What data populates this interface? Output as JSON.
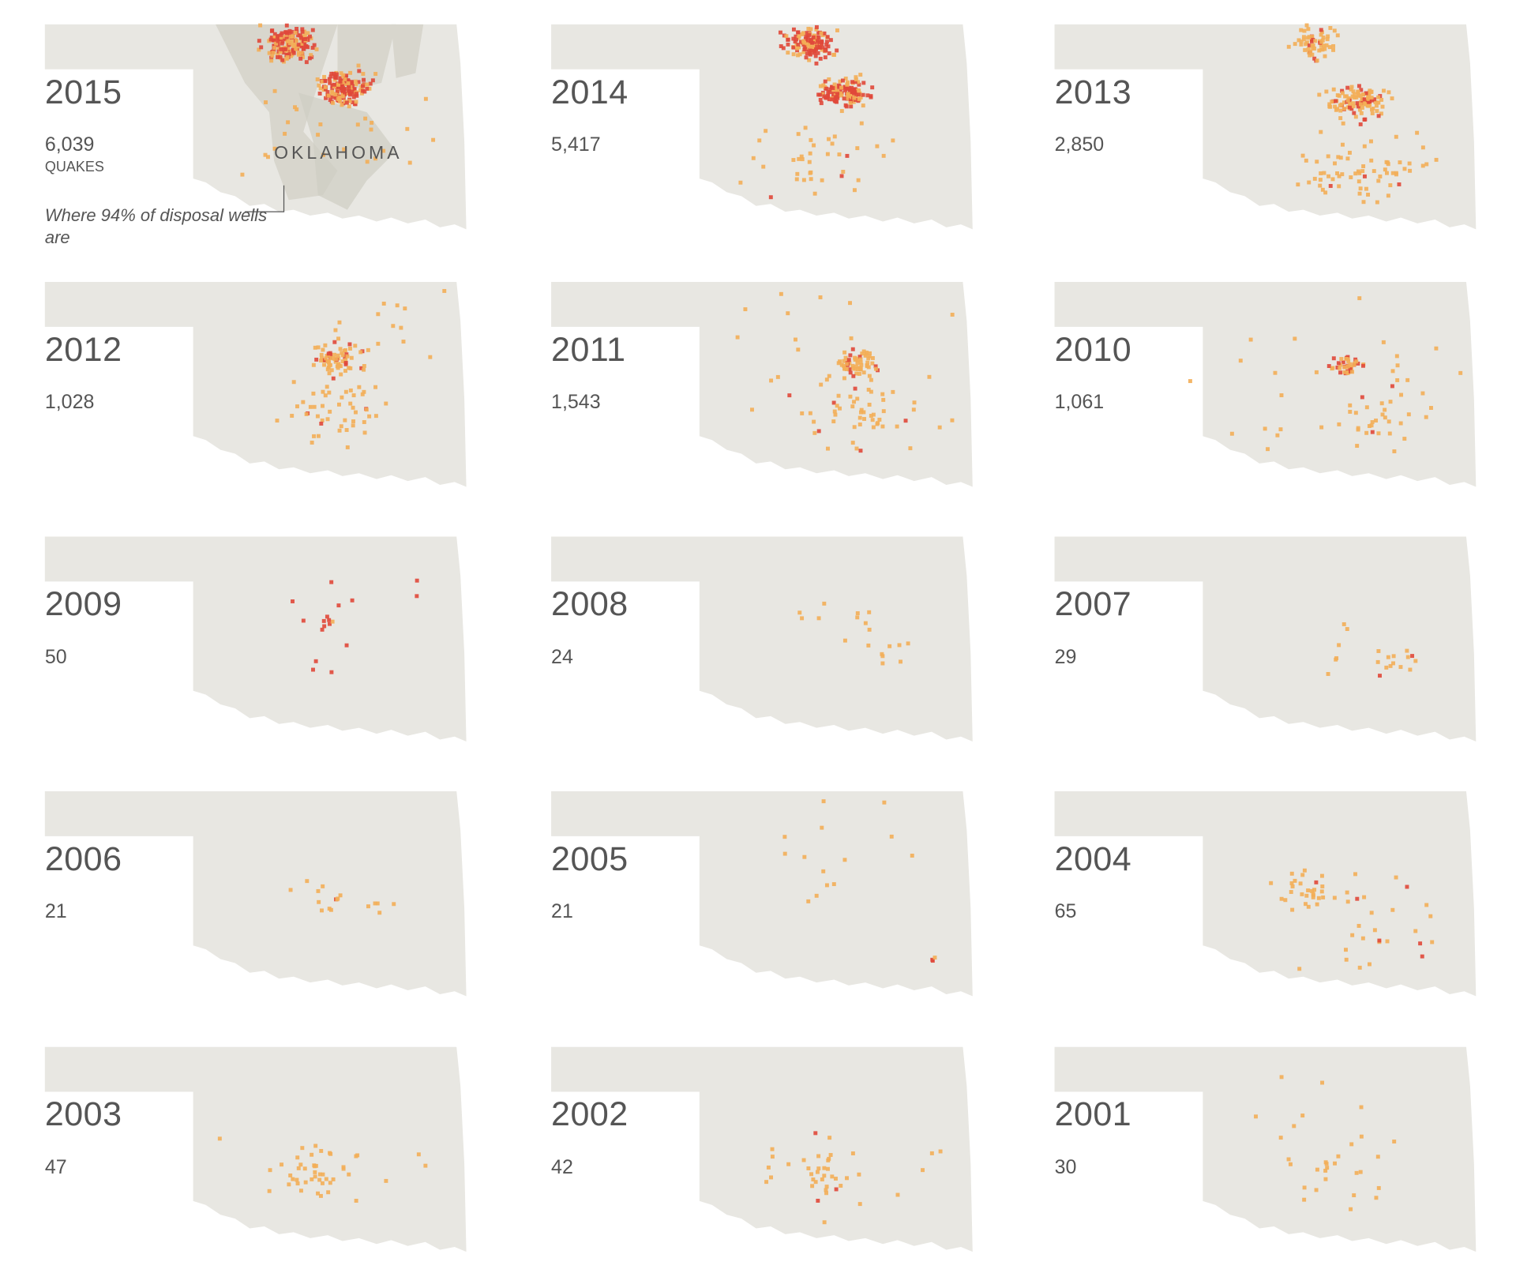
{
  "panels": [
    {
      "year": "2015",
      "count": "6,039"
    },
    {
      "year": "2014",
      "count": "5,417"
    },
    {
      "year": "2013",
      "count": "2,850"
    },
    {
      "year": "2012",
      "count": "1,028"
    },
    {
      "year": "2011",
      "count": "1,543"
    },
    {
      "year": "2010",
      "count": "1,061"
    },
    {
      "year": "2009",
      "count": "50"
    },
    {
      "year": "2008",
      "count": "24"
    },
    {
      "year": "2007",
      "count": "29"
    },
    {
      "year": "2006",
      "count": "21"
    },
    {
      "year": "2005",
      "count": "21"
    },
    {
      "year": "2004",
      "count": "65"
    },
    {
      "year": "2003",
      "count": "47"
    },
    {
      "year": "2002",
      "count": "42"
    },
    {
      "year": "2001",
      "count": "30"
    }
  ],
  "unit": "QUAKES",
  "state_label": "OKLAHOMA",
  "annotation": "Where 94% of disposal wells are"
}
